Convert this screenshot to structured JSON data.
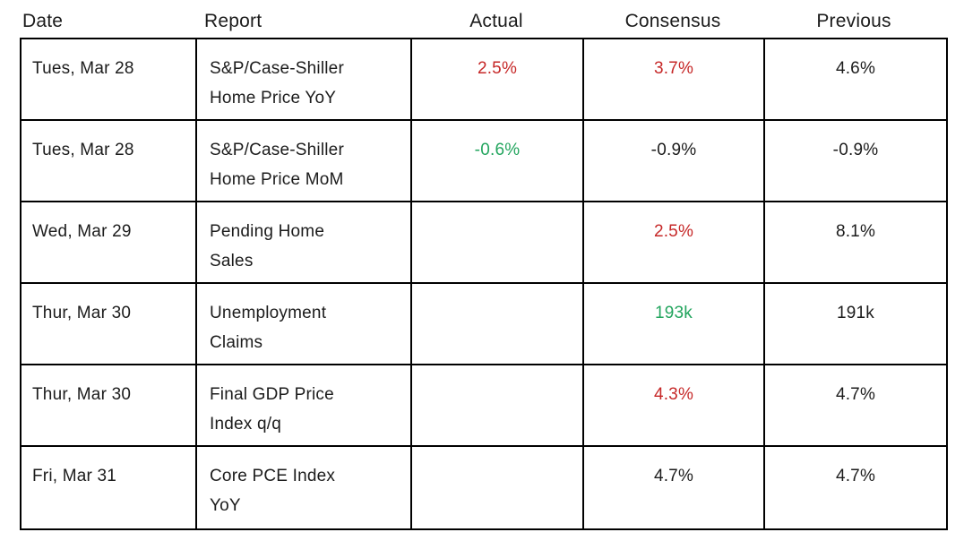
{
  "colors": {
    "worse_value": "#c62828",
    "better_value": "#23a55e",
    "text": "#1c1c1c",
    "border": "#000000",
    "background": "#ffffff"
  },
  "table": {
    "headers": {
      "date": "Date",
      "report": "Report",
      "actual": "Actual",
      "consensus": "Consensus",
      "previous": "Previous"
    },
    "rows": [
      {
        "date": "Tues, Mar 28",
        "report": "S&P/Case-Shiller\nHome Price YoY",
        "actual": "2.5%",
        "actual_trend": "worse",
        "consensus": "3.7%",
        "consensus_trend": "worse",
        "previous": "4.6%"
      },
      {
        "date": "Tues, Mar 28",
        "report": "S&P/Case-Shiller\nHome Price MoM",
        "actual": "-0.6%",
        "actual_trend": "better",
        "consensus": "-0.9%",
        "consensus_trend": "neutral",
        "previous": "-0.9%"
      },
      {
        "date": "Wed, Mar 29",
        "report": "Pending Home\nSales",
        "actual": "",
        "actual_trend": "neutral",
        "consensus": "2.5%",
        "consensus_trend": "worse",
        "previous": "8.1%"
      },
      {
        "date": "Thur, Mar 30",
        "report": "Unemployment\nClaims",
        "actual": "",
        "actual_trend": "neutral",
        "consensus": "193k",
        "consensus_trend": "better",
        "previous": "191k"
      },
      {
        "date": "Thur, Mar 30",
        "report": "Final GDP Price\nIndex q/q",
        "actual": "",
        "actual_trend": "neutral",
        "consensus": "4.3%",
        "consensus_trend": "worse",
        "previous": "4.7%"
      },
      {
        "date": "Fri, Mar 31",
        "report": "Core PCE Index\nYoY",
        "actual": "",
        "actual_trend": "neutral",
        "consensus": "4.7%",
        "consensus_trend": "neutral",
        "previous": "4.7%"
      }
    ]
  },
  "chart_data": {
    "type": "table",
    "columns": [
      "Date",
      "Report",
      "Actual",
      "Consensus",
      "Previous"
    ],
    "rows": [
      {
        "date": "Tues, Mar 28",
        "report": "S&P/Case-Shiller Home Price YoY",
        "actual": "2.5%",
        "actual_color": "red",
        "consensus": "3.7%",
        "consensus_color": "red",
        "previous": "4.6%"
      },
      {
        "date": "Tues, Mar 28",
        "report": "S&P/Case-Shiller Home Price MoM",
        "actual": "-0.6%",
        "actual_color": "green",
        "consensus": "-0.9%",
        "consensus_color": "black",
        "previous": "-0.9%"
      },
      {
        "date": "Wed, Mar 29",
        "report": "Pending Home Sales",
        "actual": "",
        "consensus": "2.5%",
        "consensus_color": "red",
        "previous": "8.1%"
      },
      {
        "date": "Thur, Mar 30",
        "report": "Unemployment Claims",
        "actual": "",
        "consensus": "193k",
        "consensus_color": "green",
        "previous": "191k"
      },
      {
        "date": "Thur, Mar 30",
        "report": "Final GDP Price Index q/q",
        "actual": "",
        "consensus": "4.3%",
        "consensus_color": "red",
        "previous": "4.7%"
      },
      {
        "date": "Fri, Mar 31",
        "report": "Core PCE Index YoY",
        "actual": "",
        "consensus": "4.7%",
        "consensus_color": "black",
        "previous": "4.7%"
      }
    ],
    "layout": {
      "grid": "full-borders",
      "header_position": "above-table",
      "value_alignment": "center",
      "text_alignment": "left"
    }
  }
}
